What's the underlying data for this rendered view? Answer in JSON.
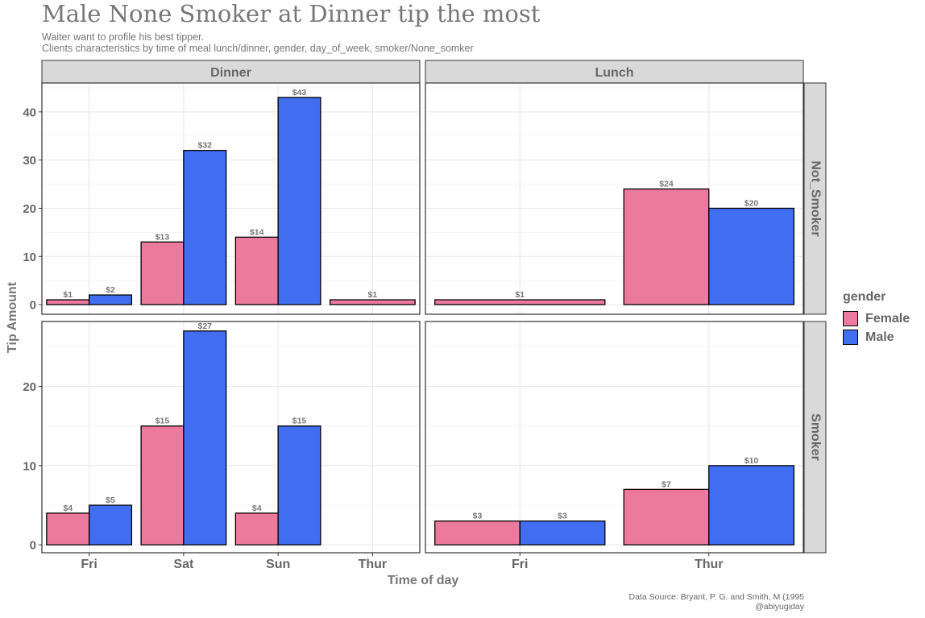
{
  "title": "Male None Smoker at Dinner tip the most",
  "subtitle_lines": [
    "Waiter want to profile his best tipper.",
    "Clients characteristics by time of meal lunch/dinner, gender, day_of_week, smoker/None_somker"
  ],
  "caption_lines": [
    "Data Source: Bryant, P. G. and Smith, M (1995",
    "@abiyugiday"
  ],
  "colors": {
    "Female": "#EC799E",
    "Male": "#416EF0",
    "strip": "#D9D9D9",
    "text": "#777777"
  },
  "legend": {
    "title": "gender",
    "entries": [
      "Female",
      "Male"
    ]
  },
  "chart_data": {
    "type": "bar",
    "faceted": true,
    "xlabel": "Time of day",
    "ylabel": "Tip Amount",
    "value_label_prefix": "$",
    "legend_position": "right",
    "grid": true,
    "column_facets": [
      "Dinner",
      "Lunch"
    ],
    "row_facets": [
      "Not_Smoker",
      "Smoker"
    ],
    "row_ylim": {
      "Not_Smoker": [
        -2,
        46
      ],
      "Smoker": [
        -1,
        28.2
      ]
    },
    "row_ticks": {
      "Not_Smoker": [
        0,
        10,
        20,
        30,
        40
      ],
      "Smoker": [
        0,
        10,
        20
      ]
    },
    "panels": [
      {
        "column": "Dinner",
        "row": "Not_Smoker",
        "categories": [
          "Fri",
          "Sat",
          "Sun",
          "Thur"
        ],
        "series": [
          {
            "name": "Female",
            "values": [
              1,
              13,
              14,
              1
            ]
          },
          {
            "name": "Male",
            "values": [
              2,
              32,
              43,
              null
            ]
          }
        ]
      },
      {
        "column": "Lunch",
        "row": "Not_Smoker",
        "categories": [
          "Fri",
          "Thur"
        ],
        "series": [
          {
            "name": "Female",
            "values": [
              1,
              24
            ]
          },
          {
            "name": "Male",
            "values": [
              null,
              20
            ]
          }
        ]
      },
      {
        "column": "Dinner",
        "row": "Smoker",
        "categories": [
          "Fri",
          "Sat",
          "Sun",
          "Thur"
        ],
        "series": [
          {
            "name": "Female",
            "values": [
              4,
              15,
              4,
              null
            ]
          },
          {
            "name": "Male",
            "values": [
              5,
              27,
              15,
              null
            ]
          }
        ]
      },
      {
        "column": "Lunch",
        "row": "Smoker",
        "categories": [
          "Fri",
          "Thur"
        ],
        "series": [
          {
            "name": "Female",
            "values": [
              3,
              7
            ]
          },
          {
            "name": "Male",
            "values": [
              3,
              10
            ]
          }
        ]
      }
    ]
  }
}
